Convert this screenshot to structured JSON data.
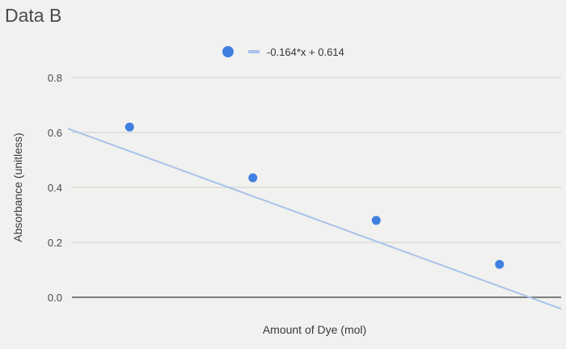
{
  "page": {
    "title": "Data B"
  },
  "chart_data": {
    "type": "scatter",
    "title": "",
    "xlabel": "Amount of Dye (mol)",
    "ylabel": "Absorbance (unitless)",
    "ylim": [
      0.0,
      0.8
    ],
    "yticks": [
      "0.0",
      "0.2",
      "0.4",
      "0.6",
      "0.8"
    ],
    "xlim": [
      0,
      4
    ],
    "grid": true,
    "legend": {
      "position": "top-center",
      "trendline_label": "-0.164*x + 0.614"
    },
    "series": [
      {
        "points": [
          {
            "x": 0.5,
            "y": 0.62
          },
          {
            "x": 1.5,
            "y": 0.435
          },
          {
            "x": 2.5,
            "y": 0.28
          },
          {
            "x": 3.5,
            "y": 0.12
          }
        ]
      }
    ],
    "trendline": {
      "slope": -0.164,
      "intercept": 0.614,
      "label": "-0.164*x + 0.614"
    },
    "colors": {
      "point": "#3f7fe0",
      "trendline": "#a9c2ea",
      "grid": "#cfcfcf",
      "baseline": "#555555"
    }
  }
}
